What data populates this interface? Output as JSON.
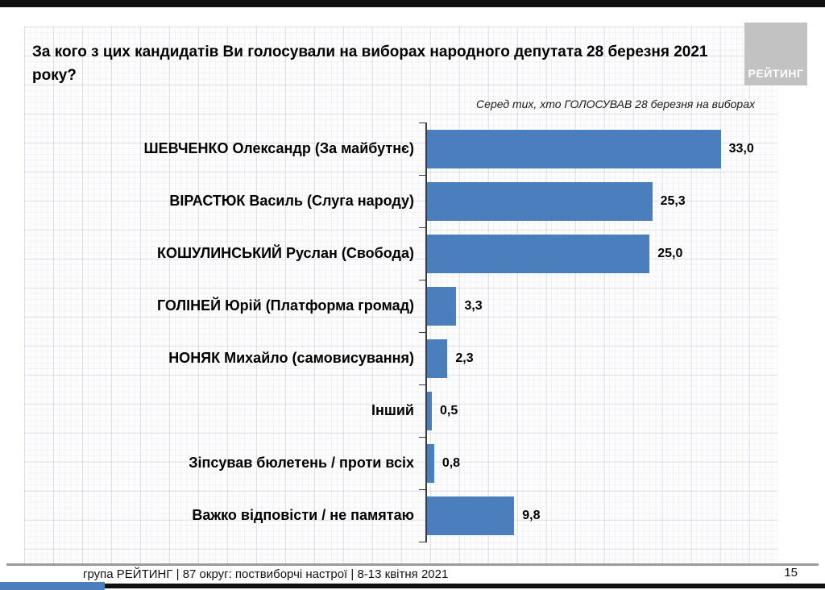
{
  "header": {
    "title": "За кого з цих кандидатів Ви голосували на виборах народного депутата 28 березня 2021\nроку?",
    "subtitle": "Серед тих, хто ГОЛОСУВАВ 28 березня на виборах",
    "logo_text": "РЕЙТИНГ"
  },
  "chart_data": {
    "type": "bar",
    "orientation": "horizontal",
    "title": "За кого з цих кандидатів Ви голосували на виборах народного депутата 28 березня 2021 року?",
    "subtitle": "Серед тих, хто ГОЛОСУВАВ 28 березня на виборах",
    "categories": [
      "ШЕВЧЕНКО Олександр (За майбутнє)",
      "ВІРАСТЮК Василь (Слуга народу)",
      "КОШУЛИНСЬКИЙ Руслан (Свобода)",
      "ГОЛІНЕЙ Юрій (Платформа громад)",
      "НОНЯК Михайло (самовисування)",
      "Інший",
      "Зіпсував бюлетень / проти всіх",
      "Важко відповісти / не памятаю"
    ],
    "values": [
      33.0,
      25.3,
      25.0,
      3.3,
      2.3,
      0.5,
      0.8,
      9.8
    ],
    "value_labels": [
      "33,0",
      "25,3",
      "25,0",
      "3,3",
      "2,3",
      "0,5",
      "0,8",
      "9,8"
    ],
    "bar_color": "#4a7ebd",
    "xlim": [
      0,
      34
    ],
    "grid": false,
    "legend": false,
    "data_labels_position": "end"
  },
  "footer": {
    "text": "група РЕЙТИНГ  | 87 округ: поствиборчі настрої | 8-13 квітня 2021",
    "page_number": "15"
  }
}
